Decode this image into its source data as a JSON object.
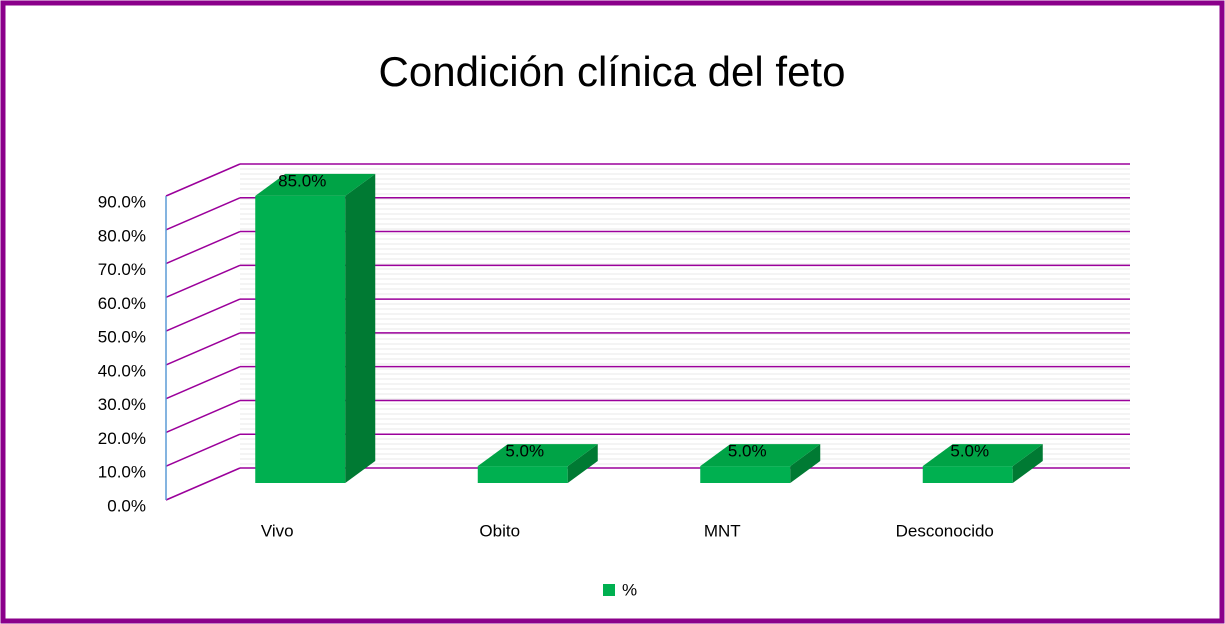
{
  "chart_data": {
    "type": "bar3d",
    "title": "Condición clínica del feto",
    "categories": [
      "Vivo",
      "Obito",
      "MNT",
      "Desconocido"
    ],
    "series": [
      {
        "name": "%",
        "color": "#00b050",
        "values": [
          85,
          5,
          5,
          5
        ],
        "value_labels": [
          "85.0%",
          "5.0%",
          "5.0%",
          "5.0%"
        ]
      }
    ],
    "ylim": [
      0,
      90
    ],
    "yticks": [
      {
        "value": 0,
        "label": "0.0%"
      },
      {
        "value": 10,
        "label": "10.0%"
      },
      {
        "value": 20,
        "label": "20.0%"
      },
      {
        "value": 30,
        "label": "30.0%"
      },
      {
        "value": 40,
        "label": "40.0%"
      },
      {
        "value": 50,
        "label": "50.0%"
      },
      {
        "value": 60,
        "label": "60.0%"
      },
      {
        "value": 70,
        "label": "70.0%"
      },
      {
        "value": 80,
        "label": "80.0%"
      },
      {
        "value": 90,
        "label": "90.0%"
      }
    ],
    "grid": true,
    "grid_color": "#9b009b",
    "legend": "bottom"
  }
}
